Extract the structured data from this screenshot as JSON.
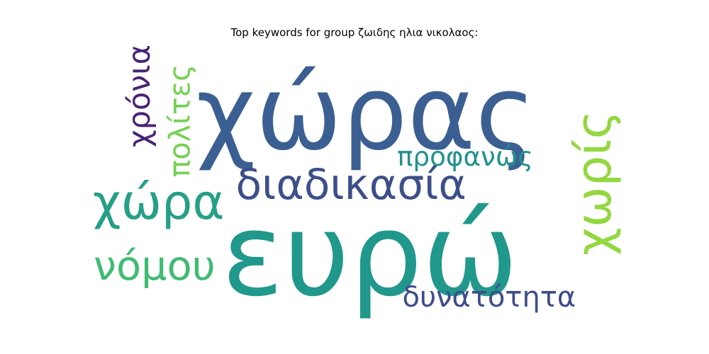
{
  "chart_data": {
    "type": "wordcloud",
    "title": "Top keywords for group ζωιδης ηλια νικολαος:",
    "words": [
      {
        "text": "χώρας",
        "color": "#3b5f92",
        "orientation": "horizontal"
      },
      {
        "text": "ευρώ",
        "color": "#21988c",
        "orientation": "horizontal"
      },
      {
        "text": "χώρα",
        "color": "#25a085",
        "orientation": "horizontal"
      },
      {
        "text": "διαδικασία",
        "color": "#3d4f8a",
        "orientation": "horizontal"
      },
      {
        "text": "χωρίς",
        "color": "#93d741",
        "orientation": "vertical"
      },
      {
        "text": "νόμου",
        "color": "#3fbc73",
        "orientation": "horizontal"
      },
      {
        "text": "δυνατότητα",
        "color": "#3e4c8a",
        "orientation": "horizontal"
      },
      {
        "text": "προφανώς",
        "color": "#20928c",
        "orientation": "horizontal"
      },
      {
        "text": "χρόνια",
        "color": "#482475",
        "orientation": "vertical"
      },
      {
        "text": "πολίτες",
        "color": "#75d054",
        "orientation": "vertical"
      }
    ]
  }
}
